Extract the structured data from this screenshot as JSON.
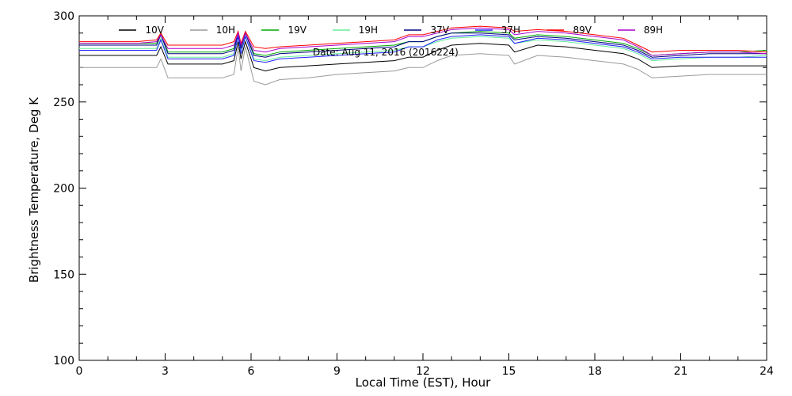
{
  "chart_data": {
    "type": "line",
    "title": "",
    "xlabel": "Local Time (EST), Hour",
    "ylabel": "Brightness Temperature, Deg K",
    "xlim": [
      0,
      24
    ],
    "ylim": [
      100,
      300
    ],
    "xticks": [
      0,
      3,
      6,
      9,
      12,
      15,
      18,
      21,
      24
    ],
    "yticks": [
      100,
      150,
      200,
      250,
      300
    ],
    "annotation": "Date: Aug 11, 2016 (2016224)",
    "grid": false,
    "legend_position": "top",
    "x": [
      0,
      1,
      2,
      2.7,
      2.85,
      3.1,
      4,
      5,
      5.4,
      5.55,
      5.65,
      5.8,
      6.1,
      6.5,
      7,
      8,
      9,
      10,
      11,
      11.5,
      12,
      12.5,
      13,
      14,
      15,
      15.2,
      16,
      17,
      18,
      19,
      19.5,
      20,
      21,
      22,
      23,
      24
    ],
    "series": [
      {
        "name": "10V",
        "color": "#000000",
        "values": [
          277,
          277,
          277,
          277,
          282,
          272,
          272,
          272,
          274,
          285,
          275,
          285,
          270,
          268,
          270,
          271,
          272,
          273,
          274,
          276,
          276,
          280,
          283,
          284,
          283,
          279,
          283,
          282,
          280,
          278,
          275,
          270,
          271,
          271,
          271,
          271
        ]
      },
      {
        "name": "10H",
        "color": "#9a9a9a",
        "values": [
          270,
          270,
          270,
          270,
          275,
          264,
          264,
          264,
          266,
          282,
          268,
          282,
          262,
          260,
          263,
          264,
          266,
          267,
          268,
          270,
          270,
          274,
          277,
          278,
          277,
          272,
          277,
          276,
          274,
          272,
          269,
          264,
          265,
          266,
          266,
          266
        ]
      },
      {
        "name": "19V",
        "color": "#00aa00",
        "values": [
          284,
          284,
          284,
          284,
          290,
          279,
          279,
          279,
          281,
          290,
          282,
          290,
          278,
          277,
          279,
          280,
          281,
          282,
          283,
          285,
          285,
          288,
          290,
          291,
          290,
          287,
          289,
          288,
          286,
          284,
          281,
          277,
          278,
          279,
          279,
          280
        ]
      },
      {
        "name": "19H",
        "color": "#66ee99",
        "values": [
          281,
          281,
          281,
          281,
          287,
          276,
          276,
          276,
          278,
          288,
          279,
          288,
          275,
          274,
          276,
          277,
          278,
          279,
          280,
          282,
          282,
          285,
          287,
          288,
          287,
          284,
          286,
          285,
          283,
          281,
          278,
          274,
          275,
          276,
          276,
          277
        ]
      },
      {
        "name": "37V",
        "color": "#000080",
        "values": [
          283,
          283,
          283,
          283,
          289,
          278,
          278,
          278,
          280,
          290,
          281,
          290,
          277,
          276,
          278,
          279,
          280,
          281,
          282,
          285,
          285,
          288,
          290,
          290,
          289,
          286,
          288,
          287,
          285,
          283,
          280,
          276,
          277,
          278,
          278,
          278
        ]
      },
      {
        "name": "37H",
        "color": "#2020ff",
        "values": [
          280,
          280,
          280,
          280,
          286,
          275,
          275,
          275,
          277,
          288,
          278,
          288,
          274,
          273,
          275,
          276,
          277,
          278,
          279,
          282,
          282,
          286,
          288,
          289,
          288,
          284,
          287,
          286,
          284,
          282,
          279,
          275,
          276,
          276,
          276,
          276
        ]
      },
      {
        "name": "89V",
        "color": "#ff0000",
        "values": [
          285,
          285,
          285,
          286,
          290,
          283,
          283,
          283,
          285,
          291,
          284,
          291,
          282,
          281,
          282,
          283,
          284,
          285,
          286,
          289,
          289,
          291,
          293,
          294,
          293,
          291,
          292,
          291,
          289,
          287,
          283,
          279,
          280,
          280,
          280,
          279
        ]
      },
      {
        "name": "89H",
        "color": "#aa00cc",
        "values": [
          284,
          284,
          284,
          285,
          289,
          281,
          281,
          281,
          283,
          290,
          283,
          290,
          280,
          279,
          281,
          282,
          283,
          284,
          285,
          288,
          288,
          290,
          292,
          293,
          292,
          289,
          291,
          290,
          288,
          286,
          282,
          277,
          278,
          279,
          279,
          278
        ]
      }
    ]
  }
}
